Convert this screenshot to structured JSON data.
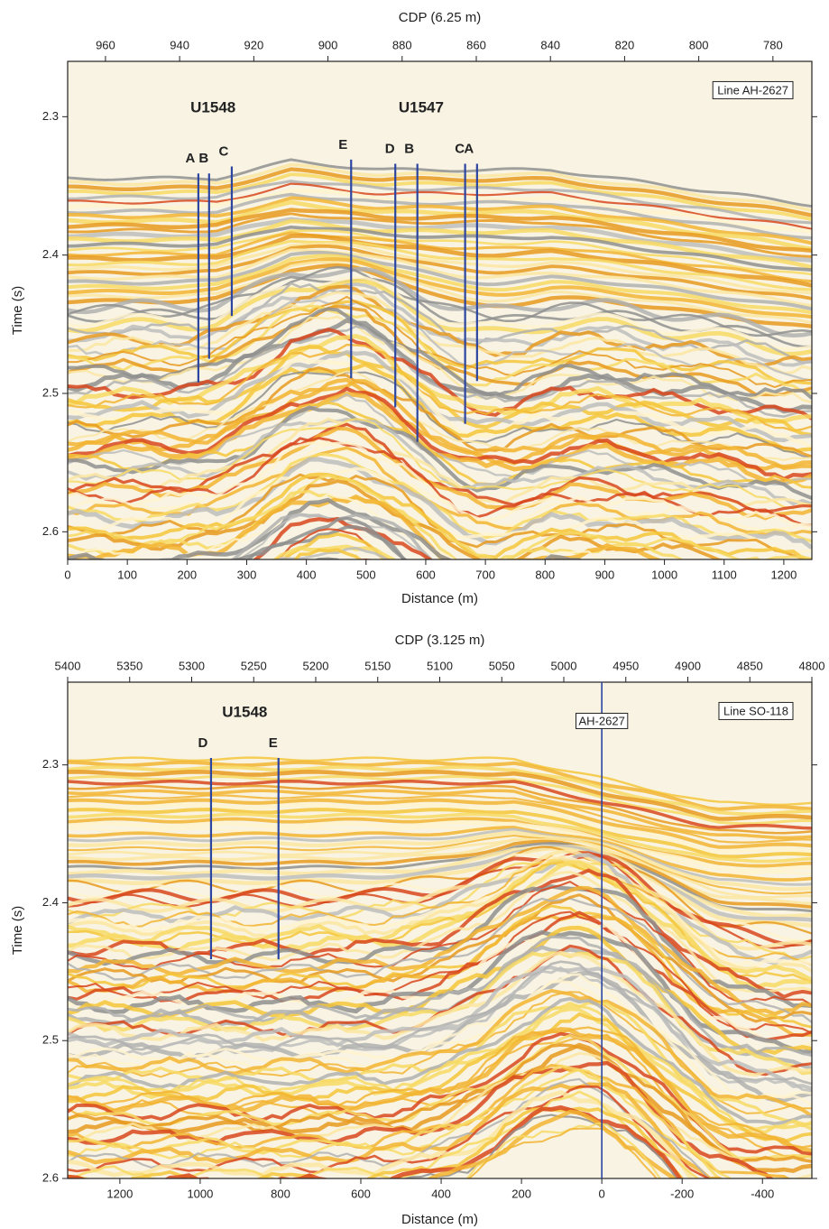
{
  "chart_data": [
    {
      "type": "seismic",
      "line_label": "Line AH-2627",
      "cdp_axis": {
        "label": "CDP (6.25 m)",
        "xlim": [
          970.2,
          769.5
        ],
        "xticks": [
          960,
          940,
          920,
          900,
          880,
          860,
          840,
          820,
          800,
          780
        ]
      },
      "distance_axis": {
        "label": "Distance (m)",
        "xlim": [
          0,
          1247
        ],
        "xticks": [
          0,
          100,
          200,
          300,
          400,
          500,
          600,
          700,
          800,
          900,
          1000,
          1100,
          1200
        ]
      },
      "time_axis": {
        "label": "Time (s)",
        "ylim": [
          2.26,
          2.62
        ],
        "yticks": [
          2.3,
          2.4,
          2.5,
          2.6
        ]
      },
      "sites": [
        {
          "name": "U1548",
          "holes": [
            {
              "name": "A",
              "distance": 219,
              "time_top": 2.341,
              "time_bottom": 2.492
            },
            {
              "name": "B",
              "distance": 237,
              "time_top": 2.341,
              "time_bottom": 2.475
            },
            {
              "name": "C",
              "distance": 275,
              "time_top": 2.336,
              "time_bottom": 2.444
            }
          ]
        },
        {
          "name": "U1547",
          "holes": [
            {
              "name": "E",
              "distance": 475,
              "time_top": 2.331,
              "time_bottom": 2.489
            },
            {
              "name": "D",
              "distance": 549,
              "time_top": 2.334,
              "time_bottom": 2.51
            },
            {
              "name": "B",
              "distance": 586,
              "time_top": 2.334,
              "time_bottom": 2.535
            },
            {
              "name": "C",
              "distance": 666,
              "time_top": 2.334,
              "time_bottom": 2.522
            },
            {
              "name": "A",
              "distance": 686,
              "time_top": 2.334,
              "time_bottom": 2.491
            }
          ]
        }
      ]
    },
    {
      "type": "seismic",
      "line_label": "Line SO-118",
      "cdp_axis": {
        "label": "CDP (3.125 m)",
        "xlim": [
          5400,
          4800
        ],
        "xticks": [
          5400,
          5350,
          5300,
          5250,
          5200,
          5150,
          5100,
          5050,
          5000,
          4950,
          4900,
          4850,
          4800
        ]
      },
      "distance_axis": {
        "label": "Distance (m)",
        "xlim": [
          1330,
          -523
        ],
        "xticks": [
          1200,
          1000,
          800,
          600,
          400,
          200,
          0,
          -200,
          -400
        ]
      },
      "time_axis": {
        "label": "Time (s)",
        "ylim": [
          2.24,
          2.6
        ],
        "yticks": [
          2.3,
          2.4,
          2.5,
          2.6
        ]
      },
      "sites": [
        {
          "name": "U1548",
          "holes": [
            {
              "name": "D",
              "distance": 973,
              "time_top": 2.295,
              "time_bottom": 2.441
            },
            {
              "name": "E",
              "distance": 805,
              "time_top": 2.295,
              "time_bottom": 2.441
            }
          ]
        }
      ],
      "crossing": {
        "label": "AH-2627",
        "distance": 0
      }
    }
  ]
}
